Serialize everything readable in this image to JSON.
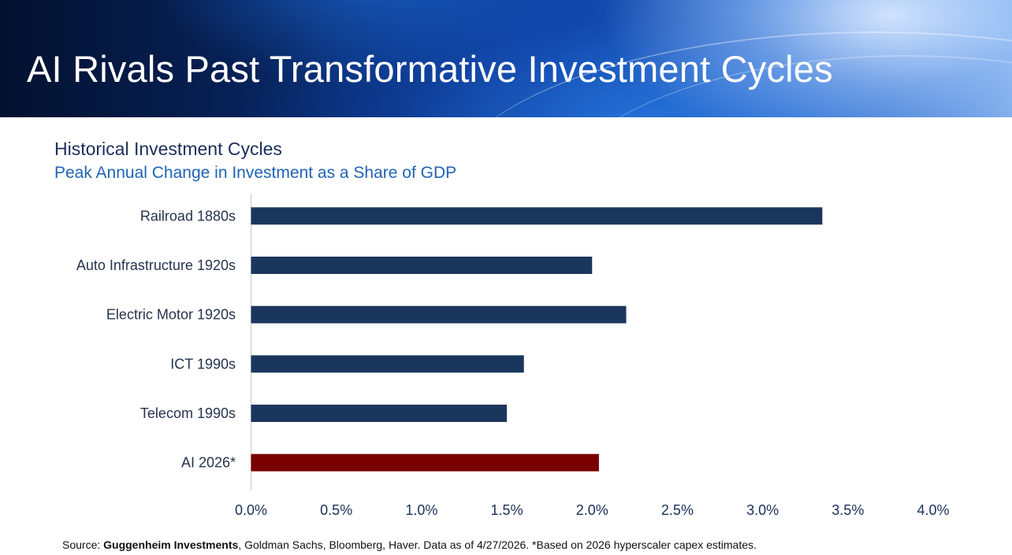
{
  "slide": {
    "title": "AI Rivals Past Transformative Investment Cycles"
  },
  "source": {
    "prefix": "Source: ",
    "bold": "Guggenheim Investments",
    "rest": ", Goldman Sachs, Bloomberg, Haver. Data as of 4/27/2026. *Based on 2026 hyperscaler capex estimates."
  },
  "chart_data": {
    "type": "bar",
    "orientation": "horizontal",
    "title": "Historical Investment Cycles",
    "subtitle": "Peak Annual Change in Investment as a Share of GDP",
    "xlabel": "",
    "ylabel": "",
    "categories": [
      "Railroad 1880s",
      "Auto Infrastructure 1920s",
      "Electric Motor 1920s",
      "ICT 1990s",
      "Telecom 1990s",
      "AI 2026*"
    ],
    "values": [
      3.35,
      2.0,
      2.2,
      1.6,
      1.5,
      2.04
    ],
    "bar_colors": [
      "#1b365d",
      "#1b365d",
      "#1b365d",
      "#1b365d",
      "#1b365d",
      "#7a0000"
    ],
    "xlim": [
      0,
      4.0
    ],
    "xticks": [
      0,
      0.5,
      1.0,
      1.5,
      2.0,
      2.5,
      3.0,
      3.5,
      4.0
    ],
    "xtick_labels": [
      "0.0%",
      "0.5%",
      "1.0%",
      "1.5%",
      "2.0%",
      "2.5%",
      "3.0%",
      "3.5%",
      "4.0%"
    ],
    "grid": false,
    "legend": "none"
  }
}
